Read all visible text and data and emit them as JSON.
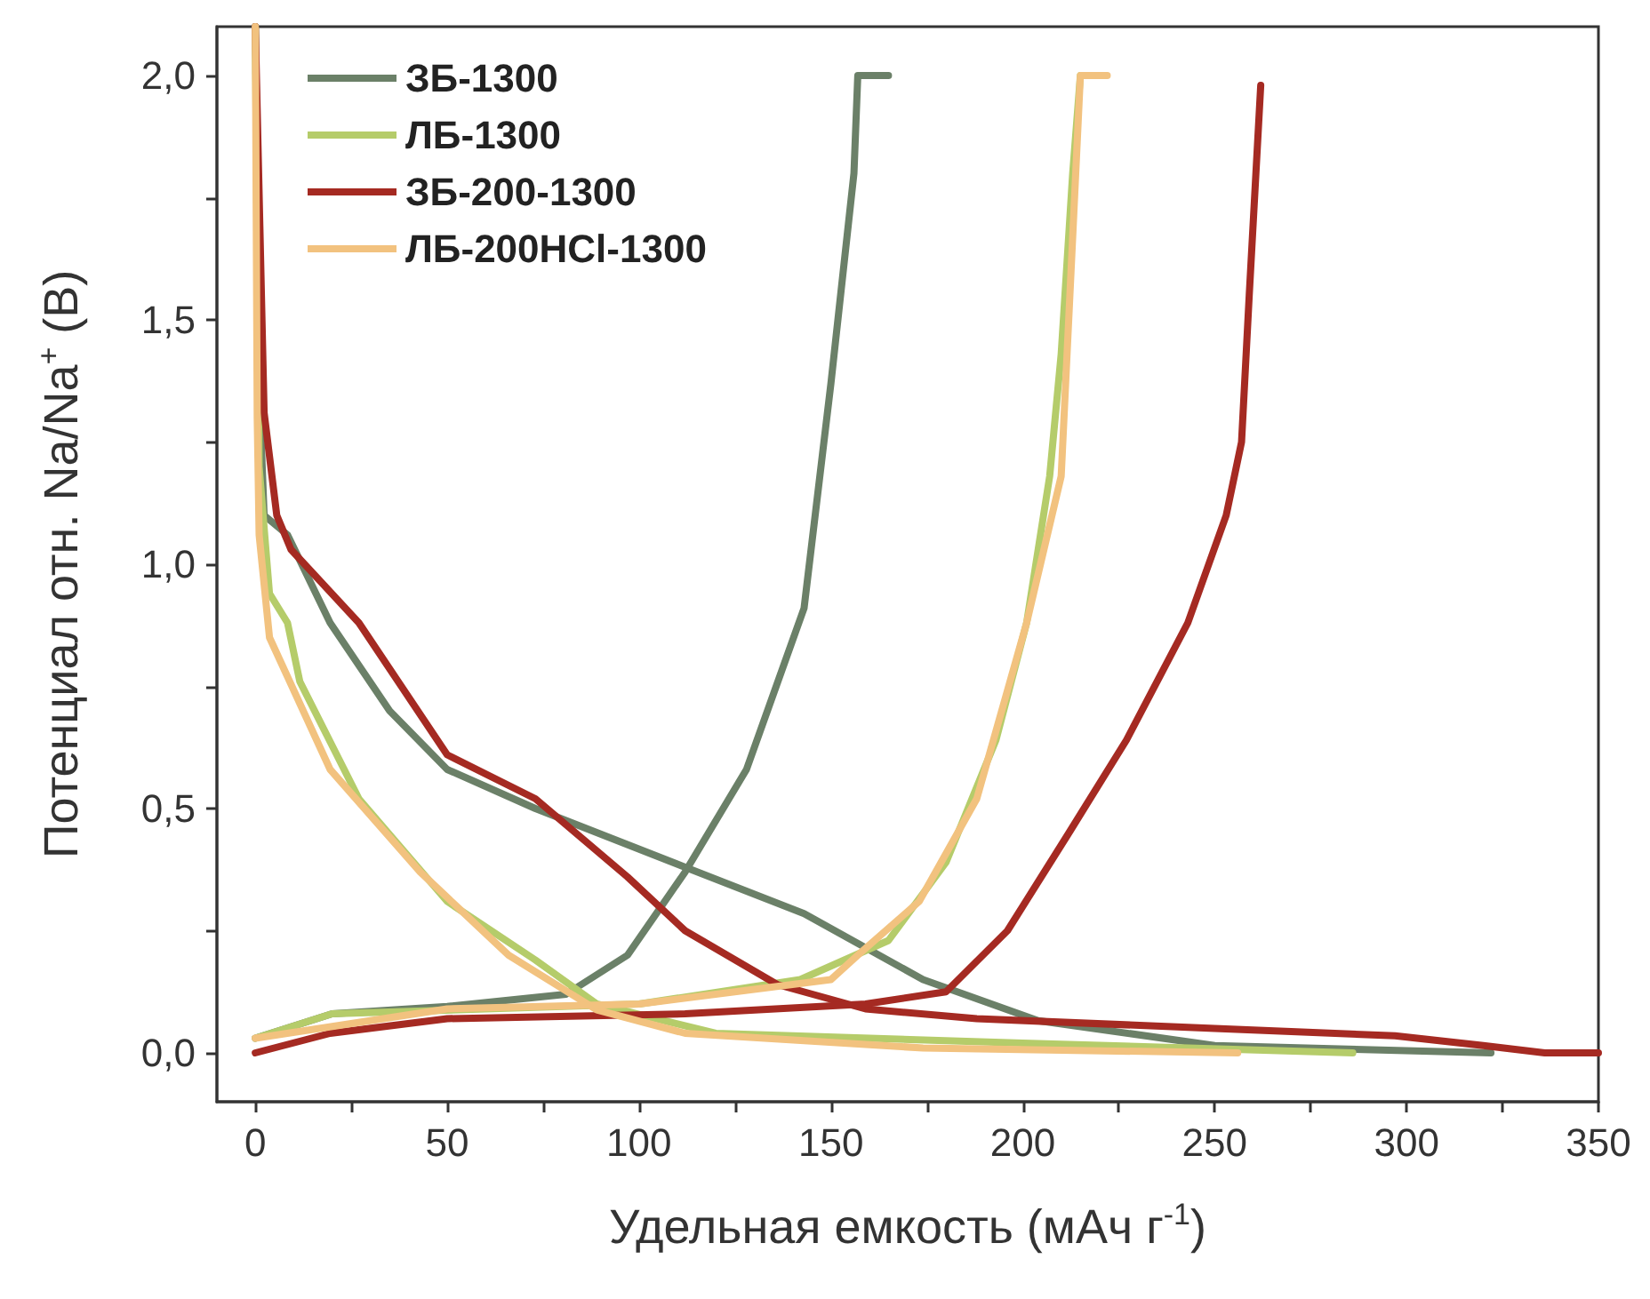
{
  "chart_data": {
    "type": "line",
    "xlabel": "Удельная емкость (мАч г$^{-1}$)",
    "ylabel": "Потенциал отн. Na/Na$^{+}$ (В)",
    "xlim": [
      -10,
      350
    ],
    "ylim": [
      -0.1,
      2.1
    ],
    "xticks": [
      0,
      {
        "value": 25,
        "label": null
      },
      50,
      {
        "value": 75,
        "label": null
      },
      100,
      {
        "value": 125,
        "label": null
      },
      150,
      {
        "value": 175,
        "label": null
      },
      200,
      {
        "value": 225,
        "label": null
      },
      250,
      {
        "value": 275,
        "label": null
      },
      300,
      {
        "value": 325,
        "label": null
      },
      350
    ],
    "yticks": [
      {
        "value": 0,
        "label": "0,0"
      },
      {
        "value": 0.25,
        "label": null
      },
      {
        "value": 0.5,
        "label": "0,5"
      },
      {
        "value": 0.75,
        "label": null
      },
      {
        "value": 1,
        "label": "1,0"
      },
      {
        "value": 1.25,
        "label": null
      },
      {
        "value": 1.5,
        "label": "1,5"
      },
      {
        "value": 1.75,
        "label": null
      },
      {
        "value": 2,
        "label": "2,0"
      }
    ],
    "grid": false,
    "legend": "top left",
    "marker": "none",
    "line_style": "solid",
    "series": [
      {
        "name": "ЗБ-1300",
        "color": "#6b8068",
        "x": [
          0,
          1.4,
          2.3,
          8.4,
          19.5,
          35,
          50,
          73,
          112,
          143,
          174,
          204,
          250,
          322
        ],
        "values": [
          2.1,
          1.28,
          1.1,
          1.06,
          0.88,
          0.7,
          0.58,
          0.5,
          0.38,
          0.285,
          0.15,
          0.066,
          0.015,
          0
        ]
      },
      {
        "color": "#6b8068",
        "x": [
          0,
          20,
          50,
          81,
          97,
          112,
          128,
          143,
          150,
          156,
          157,
          165
        ],
        "values": [
          0.03,
          0.08,
          0.095,
          0.12,
          0.2,
          0.37,
          0.58,
          0.91,
          1.37,
          1.8,
          2.0,
          2.0
        ]
      },
      {
        "name": "ЛБ-1300",
        "color": "#b5cc6a",
        "x": [
          0,
          1,
          3.7,
          8.4,
          11.6,
          27,
          50,
          73,
          89,
          120,
          200,
          286
        ],
        "values": [
          2.1,
          1.2,
          0.94,
          0.88,
          0.76,
          0.52,
          0.31,
          0.19,
          0.1,
          0.04,
          0.02,
          0
        ]
      },
      {
        "color": "#b5cc6a",
        "x": [
          0,
          20,
          100,
          142,
          165,
          180,
          193,
          201,
          207,
          210,
          213,
          215
        ],
        "values": [
          0.03,
          0.08,
          0.1,
          0.15,
          0.23,
          0.39,
          0.64,
          0.88,
          1.18,
          1.43,
          1.8,
          2.0
        ]
      },
      {
        "name": "ЗБ-200-1300",
        "color": "#a52a22",
        "x": [
          0,
          2.3,
          5.6,
          9.3,
          27,
          50,
          73,
          97,
          112,
          136,
          159,
          188,
          250,
          297,
          320,
          336,
          350
        ],
        "values": [
          2.1,
          1.31,
          1.1,
          1.03,
          0.88,
          0.61,
          0.52,
          0.36,
          0.25,
          0.14,
          0.09,
          0.07,
          0.05,
          0.035,
          0.015,
          0,
          0
        ]
      },
      {
        "color": "#a52a22",
        "x": [
          0,
          19.5,
          50,
          112,
          159,
          180,
          196,
          212,
          227,
          243,
          253,
          257,
          259,
          262
        ],
        "values": [
          0,
          0.04,
          0.07,
          0.08,
          0.1,
          0.125,
          0.25,
          0.45,
          0.64,
          0.88,
          1.1,
          1.25,
          1.55,
          1.98
        ]
      },
      {
        "name": "ЛБ-200HCl-1300",
        "color": "#f2c27f",
        "x": [
          0,
          0.5,
          1,
          3.7,
          19.5,
          43,
          66,
          89,
          112,
          174,
          256
        ],
        "values": [
          2.1,
          1.3,
          1.06,
          0.85,
          0.58,
          0.37,
          0.2,
          0.088,
          0.04,
          0.01,
          0
        ]
      },
      {
        "color": "#f2c27f",
        "x": [
          0,
          50,
          100,
          150,
          157,
          173,
          188,
          201,
          210,
          213,
          215,
          222
        ],
        "values": [
          0.03,
          0.09,
          0.1,
          0.15,
          0.2,
          0.31,
          0.52,
          0.88,
          1.18,
          1.67,
          2.0,
          2.0
        ]
      }
    ]
  }
}
